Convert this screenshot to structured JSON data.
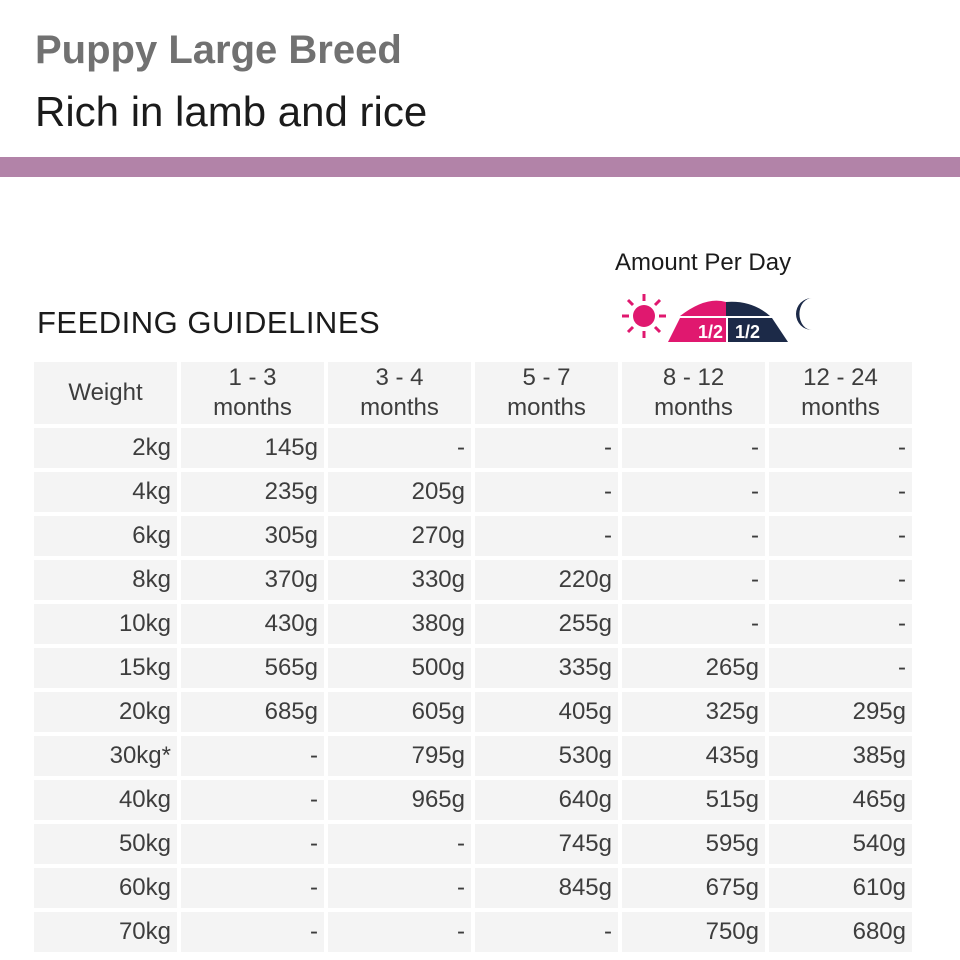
{
  "header": {
    "title": "Puppy Large Breed",
    "subtitle": "Rich in lamb and rice",
    "band_color": "#b283a8"
  },
  "amount_label": "Amount Per Day",
  "section_title": "FEEDING GUIDELINES",
  "icon": {
    "sun": "sun-icon",
    "bowl": "food-bowl-icon",
    "morning_fraction": "1/2",
    "evening_fraction": "1/2",
    "moon": "moon-icon",
    "pink": "#e0186f",
    "navy": "#1c2a48"
  },
  "table": {
    "headers": [
      [
        "Weight",
        ""
      ],
      [
        "1 - 3",
        "months"
      ],
      [
        "3 - 4",
        "months"
      ],
      [
        "5 - 7",
        "months"
      ],
      [
        "8 - 12",
        "months"
      ],
      [
        "12 - 24",
        "months"
      ]
    ],
    "rows": [
      [
        "2kg",
        "145g",
        "-",
        "-",
        "-",
        "-"
      ],
      [
        "4kg",
        "235g",
        "205g",
        "-",
        "-",
        "-"
      ],
      [
        "6kg",
        "305g",
        "270g",
        "-",
        "-",
        "-"
      ],
      [
        "8kg",
        "370g",
        "330g",
        "220g",
        "-",
        "-"
      ],
      [
        "10kg",
        "430g",
        "380g",
        "255g",
        "-",
        "-"
      ],
      [
        "15kg",
        "565g",
        "500g",
        "335g",
        "265g",
        "-"
      ],
      [
        "20kg",
        "685g",
        "605g",
        "405g",
        "325g",
        "295g"
      ],
      [
        "30kg*",
        "-",
        "795g",
        "530g",
        "435g",
        "385g"
      ],
      [
        "40kg",
        "-",
        "965g",
        "640g",
        "515g",
        "465g"
      ],
      [
        "50kg",
        "-",
        "-",
        "745g",
        "595g",
        "540g"
      ],
      [
        "60kg",
        "-",
        "-",
        "845g",
        "675g",
        "610g"
      ],
      [
        "70kg",
        "-",
        "-",
        "-",
        "750g",
        "680g"
      ]
    ]
  }
}
